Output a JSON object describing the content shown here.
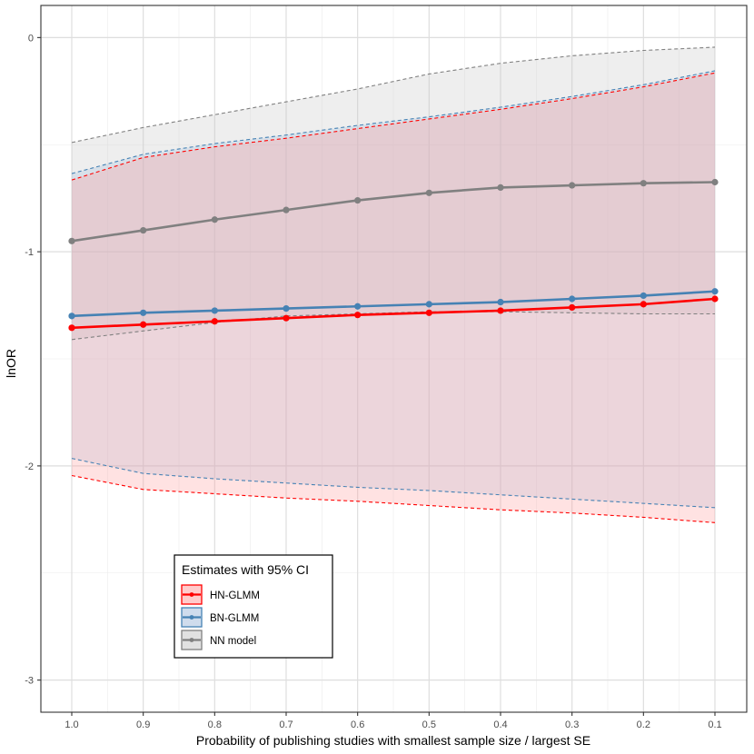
{
  "chart_data": {
    "type": "line",
    "xlabel": "Probability of publishing studies with smallest sample size / largest SE",
    "ylabel": "lnOR",
    "x": [
      1.0,
      0.9,
      0.8,
      0.7,
      0.6,
      0.5,
      0.4,
      0.3,
      0.2,
      0.1
    ],
    "x_tick_labels": [
      "1.0",
      "0.9",
      "0.8",
      "0.7",
      "0.6",
      "0.5",
      "0.4",
      "0.3",
      "0.2",
      "0.1"
    ],
    "x_reversed": true,
    "y_ticks": [
      0,
      -1,
      -2,
      -3
    ],
    "y_tick_labels": [
      "0",
      "-1",
      "-2",
      "-3"
    ],
    "ylim": [
      -3.15,
      0.15
    ],
    "grid": true,
    "legend": {
      "title": "Estimates with 95% CI",
      "position": "bottom-left inside"
    },
    "series": [
      {
        "name": "NN model",
        "color": "#808080",
        "fill": "#c8c8c8",
        "estimate": [
          -0.95,
          -0.9,
          -0.85,
          -0.805,
          -0.76,
          -0.725,
          -0.7,
          -0.69,
          -0.68,
          -0.675
        ],
        "upper": [
          -0.49,
          -0.42,
          -0.36,
          -0.3,
          -0.24,
          -0.17,
          -0.12,
          -0.085,
          -0.06,
          -0.045
        ],
        "lower": [
          -1.41,
          -1.37,
          -1.33,
          -1.3,
          -1.29,
          -1.28,
          -1.28,
          -1.285,
          -1.29,
          -1.29
        ]
      },
      {
        "name": "BN-GLMM",
        "color": "#4682b4",
        "fill": "#a7c0de",
        "estimate": [
          -1.3,
          -1.285,
          -1.275,
          -1.265,
          -1.255,
          -1.245,
          -1.235,
          -1.22,
          -1.205,
          -1.185
        ],
        "upper": [
          -0.635,
          -0.545,
          -0.495,
          -0.455,
          -0.41,
          -0.37,
          -0.325,
          -0.275,
          -0.22,
          -0.155
        ],
        "lower": [
          -1.965,
          -2.035,
          -2.06,
          -2.08,
          -2.1,
          -2.115,
          -2.135,
          -2.155,
          -2.175,
          -2.195
        ]
      },
      {
        "name": "HN-GLMM",
        "color": "#ff0000",
        "fill": "#ffa0a0",
        "estimate": [
          -1.355,
          -1.34,
          -1.325,
          -1.31,
          -1.295,
          -1.285,
          -1.275,
          -1.26,
          -1.245,
          -1.22
        ],
        "upper": [
          -0.665,
          -0.56,
          -0.51,
          -0.47,
          -0.425,
          -0.38,
          -0.335,
          -0.285,
          -0.23,
          -0.165
        ],
        "lower": [
          -2.045,
          -2.11,
          -2.13,
          -2.15,
          -2.165,
          -2.185,
          -2.205,
          -2.22,
          -2.24,
          -2.265
        ]
      }
    ],
    "legend_order": [
      "HN-GLMM",
      "BN-GLMM",
      "NN model"
    ]
  }
}
